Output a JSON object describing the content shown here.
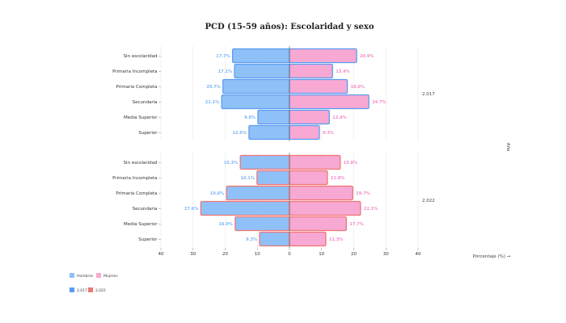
{
  "chart_data": {
    "type": "bar",
    "orientation": "horizontal",
    "subtype": "population-pyramid",
    "title": "PCD (15-59 años): Escolaridad y sexo",
    "xlabel": "Porcentaje (%) →",
    "facet_label": "Año",
    "xlim": [
      -40,
      40
    ],
    "xticks": [
      -40,
      -30,
      -20,
      -10,
      0,
      10,
      20,
      30,
      40
    ],
    "xtick_labels": [
      "40",
      "30",
      "20",
      "10",
      "0",
      "10",
      "20",
      "30",
      "40"
    ],
    "grid": true,
    "categories": [
      "Sin escolaridad",
      "Primaria Incompleta",
      "Primaria Completa",
      "Secundaria",
      "Media Superior",
      "Superior"
    ],
    "colors": {
      "Hombres": "#8fc1f8",
      "Mujeres": "#f7a8d3",
      "2,017": "#5b9cf0",
      "2,022": "#f07575"
    },
    "facets": [
      {
        "year": "2,017",
        "series": [
          {
            "name": "Hombres",
            "values": [
              17.7,
              17.1,
              20.7,
              21.1,
              9.8,
              12.6
            ],
            "labels": [
              "17.7%",
              "17.1%",
              "20.7%",
              "21.1%",
              "9.8%",
              "12.6%"
            ]
          },
          {
            "name": "Mujeres",
            "values": [
              20.9,
              13.4,
              18.0,
              24.7,
              12.4,
              9.3
            ],
            "labels": [
              "20.9%",
              "13.4%",
              "18.0%",
              "24.7%",
              "12.4%",
              "9.3%"
            ]
          }
        ]
      },
      {
        "year": "2,022",
        "series": [
          {
            "name": "Hombres",
            "values": [
              15.3,
              10.1,
              19.6,
              27.6,
              16.9,
              9.3
            ],
            "labels": [
              "15.3%",
              "10.1%",
              "19.6%",
              "27.6%",
              "16.9%",
              "9.3%"
            ]
          },
          {
            "name": "Mujeres",
            "values": [
              15.8,
              11.8,
              19.7,
              22.1,
              17.7,
              11.3
            ],
            "labels": [
              "15.8%",
              "11.8%",
              "19.7%",
              "22.1%",
              "17.7%",
              "11.3%"
            ]
          }
        ]
      }
    ],
    "legend": {
      "placement": "bottom-left",
      "sex_entries": [
        "Hombres",
        "Mujeres"
      ],
      "year_entries": [
        "2,017",
        "2,022"
      ]
    }
  }
}
